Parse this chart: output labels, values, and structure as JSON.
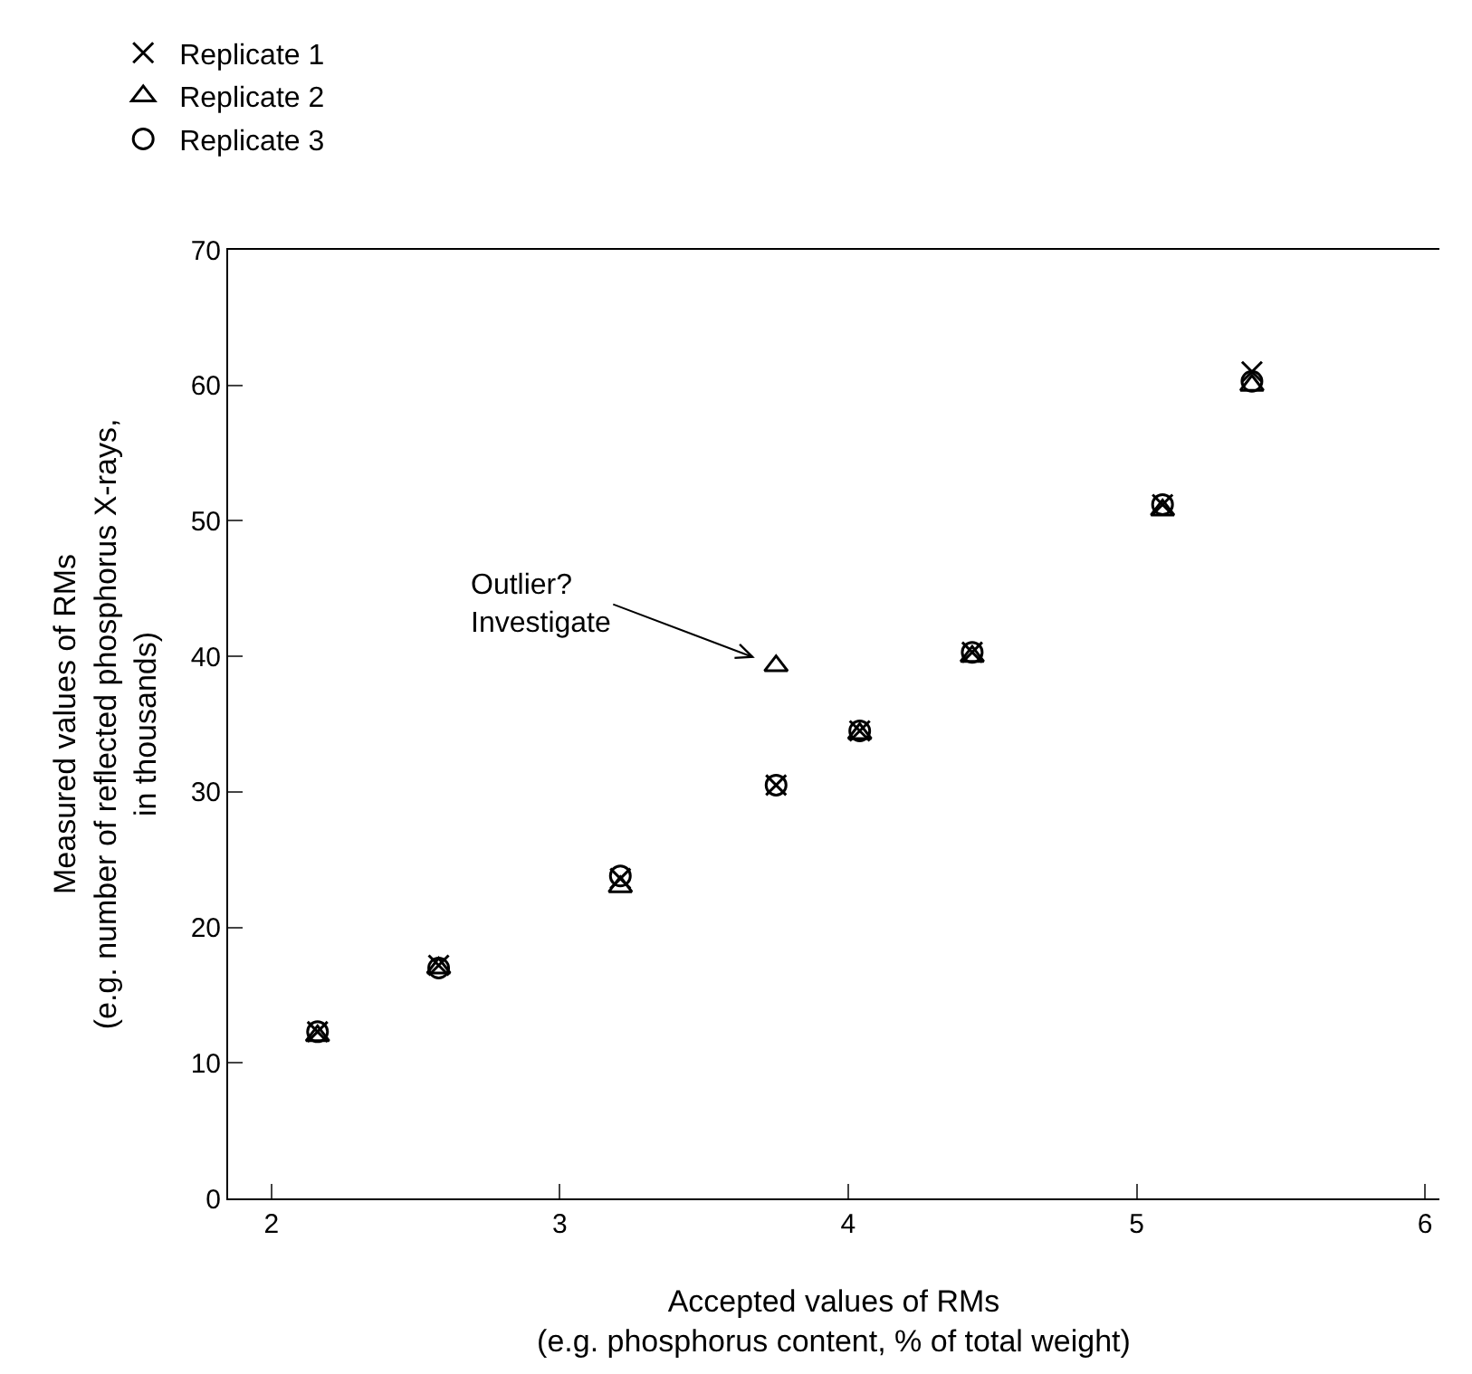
{
  "chart_data": {
    "type": "scatter",
    "xlabel": "Accepted values of RMs\n(e.g. phosphorus content, % of total weight)",
    "ylabel": "Measured values of RMs\n(e.g. number of reflected phosphorus X-rays,\nin thousands)",
    "x": [
      2.16,
      2.58,
      3.21,
      3.75,
      4.04,
      4.43,
      5.09,
      5.4
    ],
    "series": [
      {
        "name": "Replicate 1",
        "color": "#000000",
        "marker": "cross",
        "values": [
          12.3,
          17.2,
          23.6,
          30.5,
          34.5,
          40.3,
          51.2,
          61
        ]
      },
      {
        "name": "Replicate 2",
        "color": "#000000",
        "marker": "triangle",
        "values": [
          12.0,
          17.0,
          23.0,
          39.3,
          34.3,
          40.0,
          50.8,
          60
        ]
      },
      {
        "name": "Replicate 3",
        "color": "#000000",
        "marker": "circle",
        "values": [
          12.3,
          17.0,
          23.8,
          30.5,
          34.5,
          40.3,
          51.2,
          60.3
        ]
      }
    ],
    "xlim": [
      1.85,
      6.05
    ],
    "xticks": [
      2,
      3,
      4,
      5,
      6
    ],
    "ylim": [
      0,
      70
    ],
    "yticks": [
      0,
      10,
      20,
      30,
      40,
      50,
      60,
      70
    ],
    "grid": false,
    "legend": "top left",
    "annotations": [
      {
        "text": "Outlier?\nInvestigate",
        "x": 3.75,
        "y": 39.3
      }
    ]
  }
}
